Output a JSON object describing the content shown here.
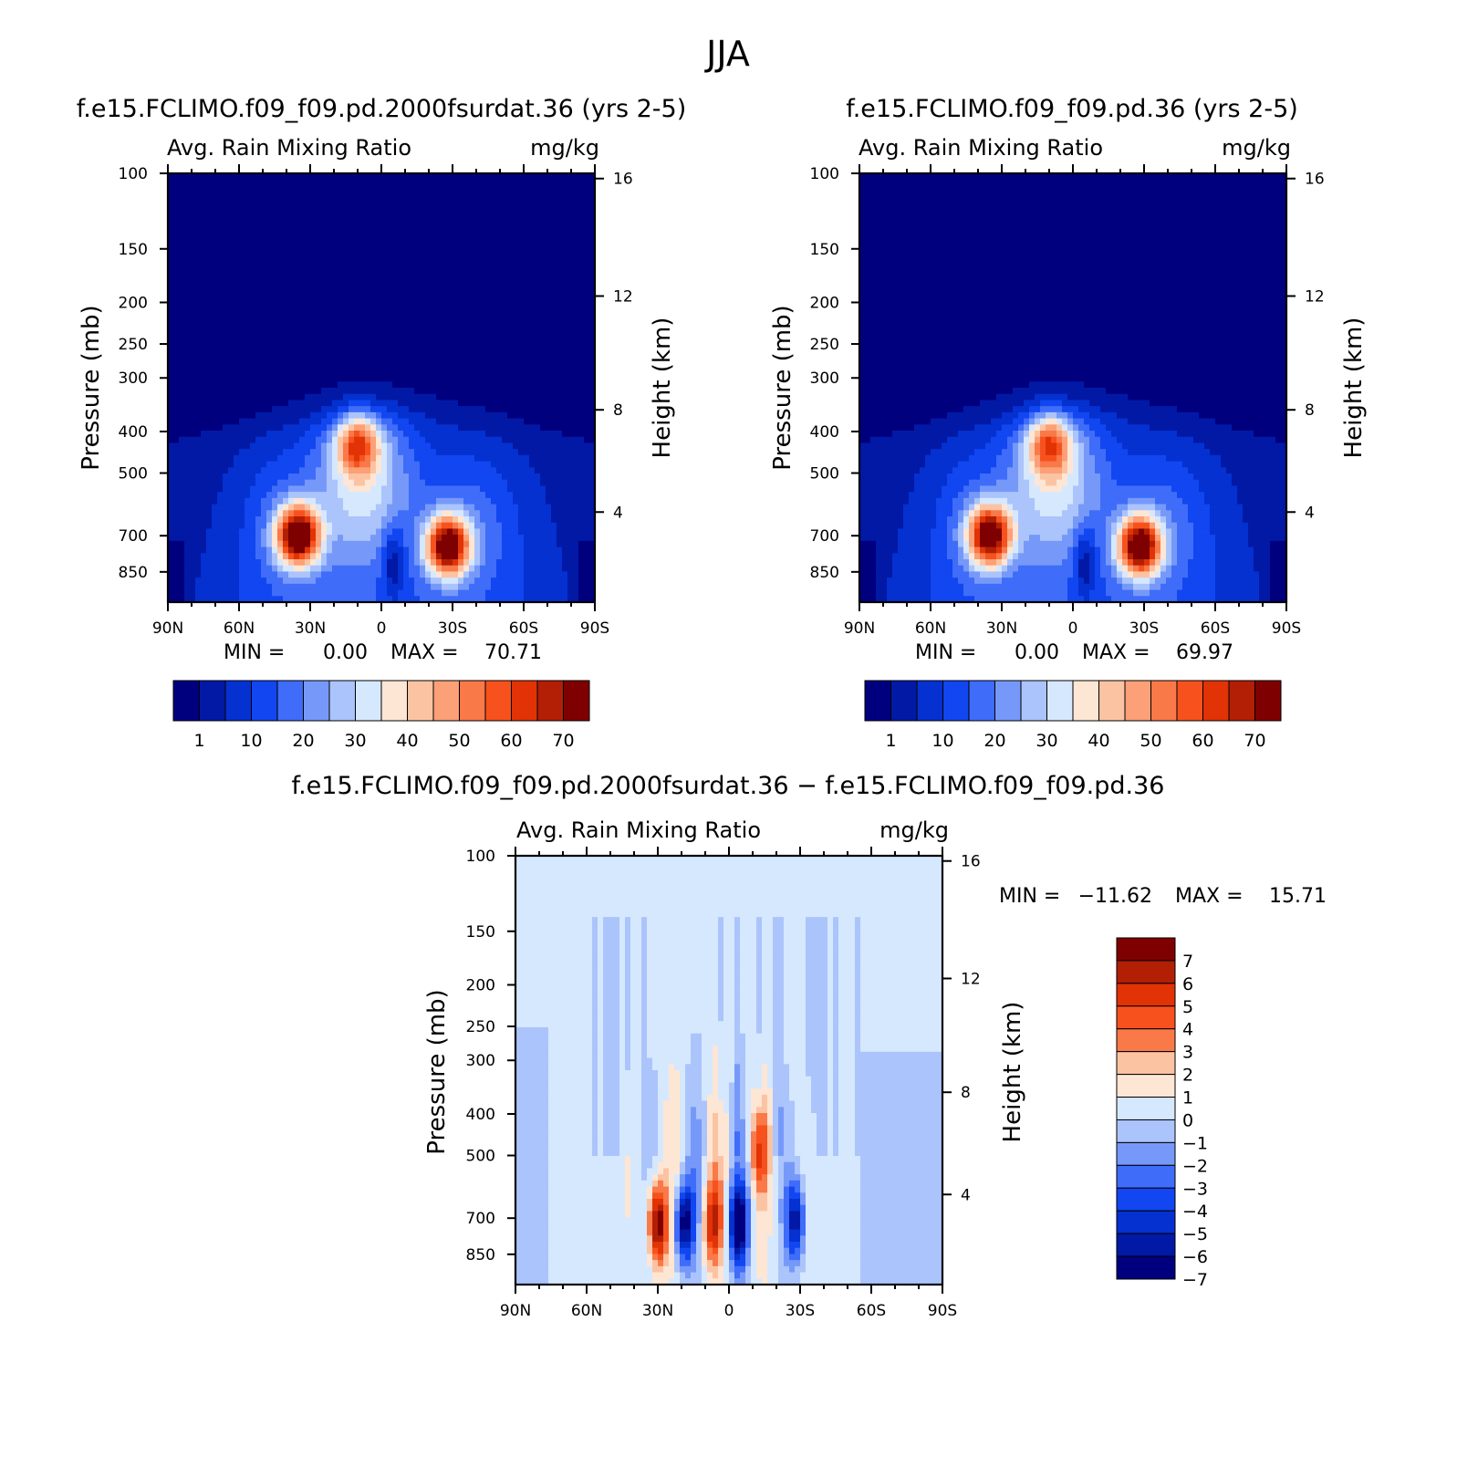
{
  "figure_title": "JJA",
  "chart_data": [
    {
      "type": "heatmap",
      "title": "f.e15.FCLIMO.f09_f09.pd.2000fsurdat.36 (yrs 2-5)",
      "variable": "Avg. Rain Mixing Ratio",
      "units": "mg/kg",
      "ylabel": "Pressure (mb)",
      "y2label": "Height (km)",
      "x_ticks": [
        "90N",
        "60N",
        "30N",
        "0",
        "30S",
        "60S",
        "90S"
      ],
      "x_range": [
        90,
        -90
      ],
      "y_ticks": [
        100,
        150,
        200,
        250,
        300,
        400,
        500,
        700,
        850
      ],
      "y_range_mb": [
        100,
        1000
      ],
      "y_scale": "log",
      "height_ticks_km": [
        16,
        12,
        8,
        4
      ],
      "min_label": "MIN =",
      "min_value": "0.00",
      "max_label": "MAX =",
      "max_value": "70.71",
      "colorbar_labels": [
        "1",
        "10",
        "20",
        "30",
        "40",
        "50",
        "60",
        "70"
      ],
      "features": [
        {
          "lat": 35,
          "p_mb": 700,
          "value": 70,
          "note": "NH subtropical maximum"
        },
        {
          "lat": -28,
          "p_mb": 740,
          "value": 68,
          "note": "SH subtropical maximum"
        },
        {
          "lat": 10,
          "p_mb": 430,
          "value": 38,
          "note": "tropical upper secondary maximum"
        }
      ]
    },
    {
      "type": "heatmap",
      "title": "f.e15.FCLIMO.f09_f09.pd.36 (yrs 2-5)",
      "variable": "Avg. Rain Mixing Ratio",
      "units": "mg/kg",
      "ylabel": "Pressure (mb)",
      "y2label": "Height (km)",
      "x_ticks": [
        "90N",
        "60N",
        "30N",
        "0",
        "30S",
        "60S",
        "90S"
      ],
      "x_range": [
        90,
        -90
      ],
      "y_ticks": [
        100,
        150,
        200,
        250,
        300,
        400,
        500,
        700,
        850
      ],
      "y_range_mb": [
        100,
        1000
      ],
      "y_scale": "log",
      "height_ticks_km": [
        16,
        12,
        8,
        4
      ],
      "min_label": "MIN =",
      "min_value": "0.00",
      "max_label": "MAX =",
      "max_value": "69.97",
      "colorbar_labels": [
        "1",
        "10",
        "20",
        "30",
        "40",
        "50",
        "60",
        "70"
      ],
      "features": [
        {
          "lat": 35,
          "p_mb": 700,
          "value": 66,
          "note": "NH subtropical maximum"
        },
        {
          "lat": -28,
          "p_mb": 740,
          "value": 69,
          "note": "SH subtropical maximum"
        },
        {
          "lat": 10,
          "p_mb": 430,
          "value": 37,
          "note": "tropical upper secondary maximum"
        }
      ]
    },
    {
      "type": "heatmap",
      "title": "f.e15.FCLIMO.f09_f09.pd.2000fsurdat.36 − f.e15.FCLIMO.f09_f09.pd.36",
      "variable": "Avg. Rain Mixing Ratio",
      "units": "mg/kg",
      "ylabel": "Pressure (mb)",
      "y2label": "Height (km)",
      "x_ticks": [
        "90N",
        "60N",
        "30N",
        "0",
        "30S",
        "60S",
        "90S"
      ],
      "x_range": [
        90,
        -90
      ],
      "y_ticks": [
        100,
        150,
        200,
        250,
        300,
        400,
        500,
        700,
        850
      ],
      "y_range_mb": [
        100,
        1000
      ],
      "y_scale": "log",
      "height_ticks_km": [
        16,
        12,
        8,
        4
      ],
      "min_label": "MIN =",
      "min_value": "−11.62",
      "max_label": "MAX =",
      "max_value": "15.71",
      "colorbar_labels": [
        "7",
        "6",
        "5",
        "4",
        "3",
        "2",
        "1",
        "0",
        "−1",
        "−2",
        "−3",
        "−4",
        "−5",
        "−6",
        "−7"
      ],
      "features": [
        {
          "lat": 30,
          "p_mb": 720,
          "value": 8,
          "note": "positive difference core"
        },
        {
          "lat": 19,
          "p_mb": 720,
          "value": -7,
          "note": "negative band"
        },
        {
          "lat": 7,
          "p_mb": 720,
          "value": 5,
          "note": "positive band"
        },
        {
          "lat": -4,
          "p_mb": 730,
          "value": -7,
          "note": "negative band"
        },
        {
          "lat": -13,
          "p_mb": 480,
          "value": 4,
          "note": "positive band"
        },
        {
          "lat": -28,
          "p_mb": 710,
          "value": -6,
          "note": "negative band"
        }
      ]
    }
  ],
  "colors": {
    "levels_top": [
      "#00007f",
      "#0219a6",
      "#0431d0",
      "#1146f0",
      "#3f6cf9",
      "#7699f9",
      "#abc4fb",
      "#d6e8fe",
      "#fee6d4",
      "#fcc3a3",
      "#fba077",
      "#f97949",
      "#f7521d",
      "#e13306",
      "#b21f05",
      "#7f0000"
    ],
    "levels_diff": [
      "#7f0000",
      "#b21f05",
      "#e13306",
      "#f7521d",
      "#f97949",
      "#fcc3a3",
      "#fee6d4",
      "#d6e8fe",
      "#abc4fb",
      "#7699f9",
      "#3f6cf9",
      "#1146f0",
      "#0431d0",
      "#0219a6",
      "#00007f"
    ]
  }
}
